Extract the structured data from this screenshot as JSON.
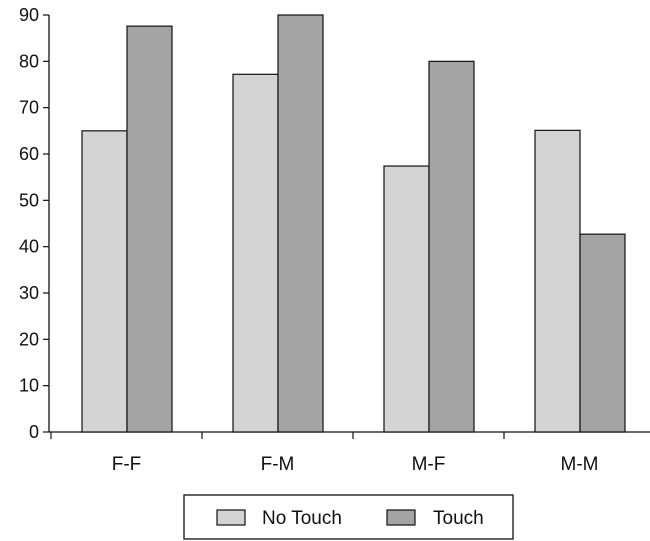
{
  "chart_data": {
    "type": "bar",
    "categories": [
      "F-F",
      "F-M",
      "M-F",
      "M-M"
    ],
    "series": [
      {
        "name": "No Touch",
        "values": [
          65,
          77.2,
          57.4,
          65.1
        ],
        "color": "#d4d4d4"
      },
      {
        "name": "Touch",
        "values": [
          87.6,
          90,
          80,
          42.7
        ],
        "color": "#a4a4a4"
      }
    ],
    "ylim": [
      0,
      90
    ],
    "yticks": [
      0,
      10,
      20,
      30,
      40,
      50,
      60,
      70,
      80,
      90
    ],
    "title": "",
    "xlabel": "",
    "ylabel": "",
    "grid": false,
    "legend_position": "bottom-center"
  }
}
